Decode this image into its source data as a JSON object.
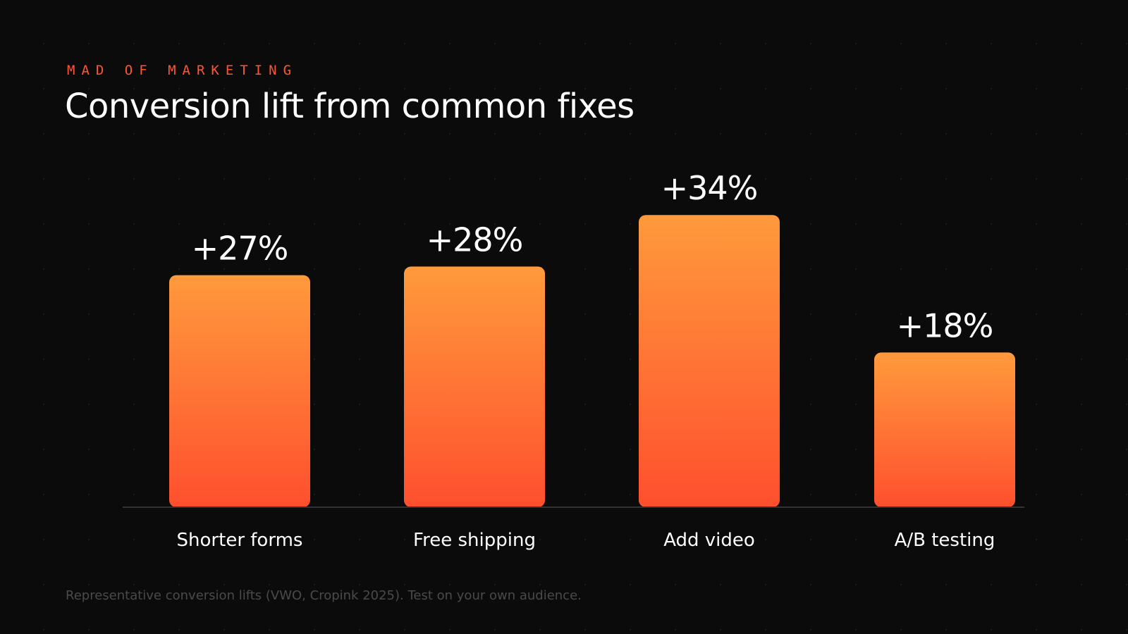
{
  "header": {
    "eyebrow": "MAD OF MARKETING",
    "title": "Conversion lift from common fixes"
  },
  "footnote": "Representative conversion lifts (VWO, Cropink 2025). Test on your own audience.",
  "colors": {
    "background": "#0b0b0b",
    "eyebrow": "#ff5533",
    "bar_top": "#ff9a3c",
    "bar_bottom": "#ff4f2e",
    "baseline": "#333333",
    "text": "#ffffff",
    "footnote": "#4a4a4a"
  },
  "chart_data": {
    "type": "bar",
    "categories": [
      "Shorter forms",
      "Free shipping",
      "Add video",
      "A/B testing"
    ],
    "values": [
      27,
      28,
      34,
      18
    ],
    "data_labels": [
      "+27%",
      "+28%",
      "+34%",
      "+18%"
    ],
    "unit": "%",
    "title": "Conversion lift from common fixes",
    "xlabel": "",
    "ylabel": "",
    "grid": false,
    "legend": "none"
  }
}
